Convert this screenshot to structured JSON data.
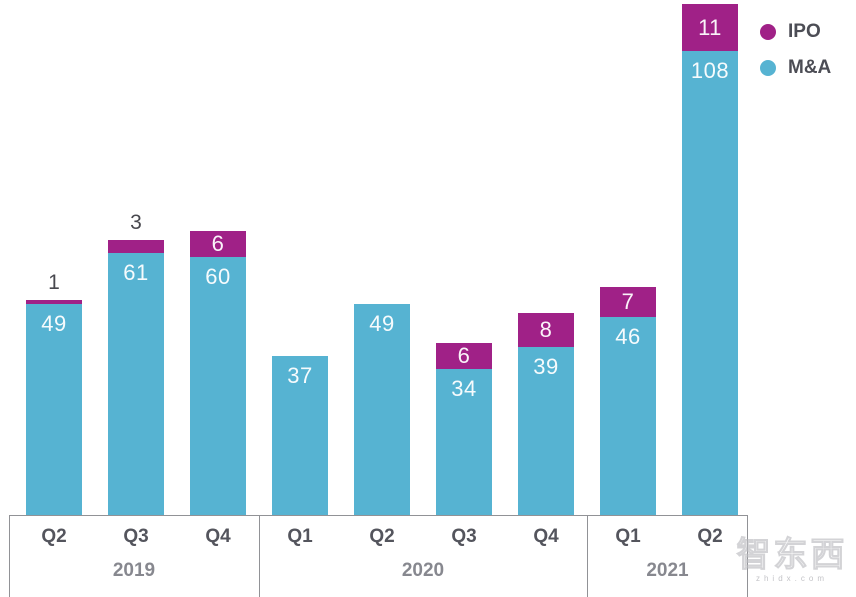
{
  "chart_data": {
    "type": "bar",
    "stacked": true,
    "title": "",
    "xlabel": "",
    "ylabel": "",
    "ylim": [
      0,
      120
    ],
    "grid": false,
    "y_axis_visible": false,
    "legend_position": "top-right",
    "legend": [
      {
        "name": "IPO",
        "color": "#a02187"
      },
      {
        "name": "M&A",
        "color": "#56b3d2"
      }
    ],
    "groups": [
      {
        "year": "2019",
        "bars": [
          {
            "quarter": "Q2",
            "ma": 49,
            "ipo": 1
          },
          {
            "quarter": "Q3",
            "ma": 61,
            "ipo": 3
          },
          {
            "quarter": "Q4",
            "ma": 60,
            "ipo": 6
          }
        ]
      },
      {
        "year": "2020",
        "bars": [
          {
            "quarter": "Q1",
            "ma": 37,
            "ipo": 0
          },
          {
            "quarter": "Q2",
            "ma": 49,
            "ipo": 0
          },
          {
            "quarter": "Q3",
            "ma": 34,
            "ipo": 6
          },
          {
            "quarter": "Q4",
            "ma": 39,
            "ipo": 8
          }
        ]
      },
      {
        "year": "2021",
        "bars": [
          {
            "quarter": "Q1",
            "ma": 46,
            "ipo": 7
          },
          {
            "quarter": "Q2",
            "ma": 108,
            "ipo": 11
          }
        ]
      }
    ]
  },
  "watermark": {
    "text": "智东西",
    "subtext": "zhidx.com"
  }
}
